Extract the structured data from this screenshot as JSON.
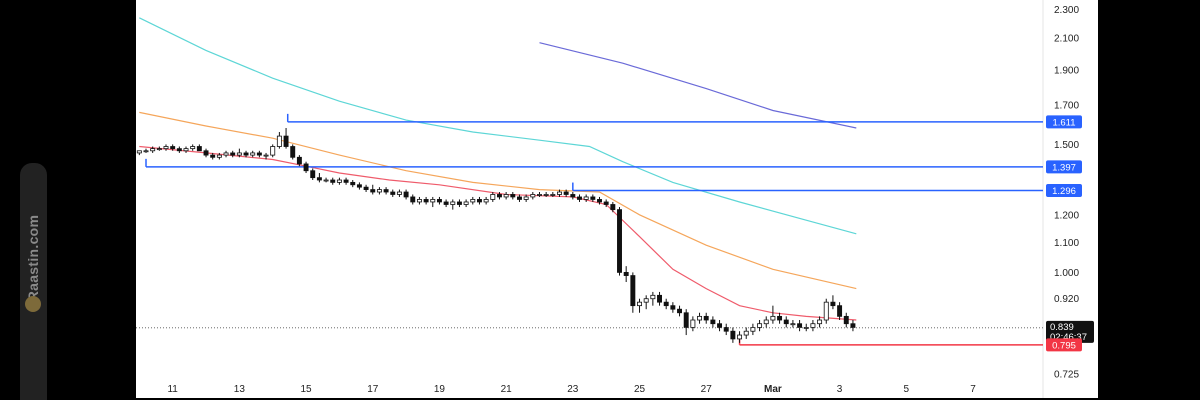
{
  "watermark": {
    "text": "Raastin.com",
    "logo_icon": "raastin-logo-icon"
  },
  "chart_data": {
    "type": "candlestick",
    "y_scale": "log",
    "ylim": [
      0.7,
      2.37
    ],
    "y_ticks": [
      {
        "value": 2.3,
        "label": "2.300"
      },
      {
        "value": 2.1,
        "label": "2.100"
      },
      {
        "value": 1.9,
        "label": "1.900"
      },
      {
        "value": 1.7,
        "label": "1.700"
      },
      {
        "value": 1.5,
        "label": "1.500"
      },
      {
        "value": 1.2,
        "label": "1.200"
      },
      {
        "value": 1.1,
        "label": "1.100"
      },
      {
        "value": 1.0,
        "label": "1.000"
      },
      {
        "value": 0.92,
        "label": "0.920"
      },
      {
        "value": 0.725,
        "label": "0.725"
      }
    ],
    "x_ticks": [
      {
        "day": 11,
        "label": "11"
      },
      {
        "day": 13,
        "label": "13"
      },
      {
        "day": 15,
        "label": "15"
      },
      {
        "day": 17,
        "label": "17"
      },
      {
        "day": 19,
        "label": "19"
      },
      {
        "day": 21,
        "label": "21"
      },
      {
        "day": 23,
        "label": "23"
      },
      {
        "day": 25,
        "label": "25"
      },
      {
        "day": 27,
        "label": "27"
      },
      {
        "day": 29,
        "label": "Mar"
      },
      {
        "day": 31,
        "label": "3"
      },
      {
        "day": 33,
        "label": "5"
      },
      {
        "day": 35,
        "label": "7"
      }
    ],
    "xlim": [
      9.9,
      37.1
    ],
    "candles": [
      [
        10.0,
        1.46,
        1.47,
        1.45,
        1.47
      ],
      [
        10.2,
        1.47,
        1.48,
        1.46,
        1.47
      ],
      [
        10.4,
        1.47,
        1.49,
        1.46,
        1.48
      ],
      [
        10.6,
        1.48,
        1.49,
        1.47,
        1.48
      ],
      [
        10.8,
        1.48,
        1.5,
        1.47,
        1.49
      ],
      [
        11.0,
        1.49,
        1.5,
        1.47,
        1.48
      ],
      [
        11.2,
        1.48,
        1.49,
        1.46,
        1.47
      ],
      [
        11.4,
        1.47,
        1.49,
        1.46,
        1.48
      ],
      [
        11.6,
        1.48,
        1.5,
        1.47,
        1.49
      ],
      [
        11.8,
        1.49,
        1.5,
        1.47,
        1.47
      ],
      [
        12.0,
        1.47,
        1.48,
        1.44,
        1.45
      ],
      [
        12.2,
        1.45,
        1.46,
        1.43,
        1.44
      ],
      [
        12.4,
        1.44,
        1.46,
        1.43,
        1.45
      ],
      [
        12.6,
        1.45,
        1.47,
        1.44,
        1.46
      ],
      [
        12.8,
        1.46,
        1.47,
        1.44,
        1.45
      ],
      [
        13.0,
        1.45,
        1.48,
        1.44,
        1.46
      ],
      [
        13.2,
        1.46,
        1.47,
        1.44,
        1.45
      ],
      [
        13.4,
        1.45,
        1.47,
        1.44,
        1.46
      ],
      [
        13.6,
        1.46,
        1.47,
        1.44,
        1.45
      ],
      [
        13.8,
        1.45,
        1.46,
        1.43,
        1.45
      ],
      [
        14.0,
        1.45,
        1.5,
        1.44,
        1.49
      ],
      [
        14.2,
        1.49,
        1.56,
        1.48,
        1.54
      ],
      [
        14.4,
        1.54,
        1.58,
        1.48,
        1.49
      ],
      [
        14.6,
        1.49,
        1.5,
        1.43,
        1.44
      ],
      [
        14.8,
        1.44,
        1.45,
        1.4,
        1.41
      ],
      [
        15.0,
        1.41,
        1.42,
        1.37,
        1.38
      ],
      [
        15.2,
        1.38,
        1.39,
        1.34,
        1.35
      ],
      [
        15.4,
        1.35,
        1.37,
        1.33,
        1.34
      ],
      [
        15.6,
        1.34,
        1.35,
        1.33,
        1.34
      ],
      [
        15.8,
        1.34,
        1.35,
        1.32,
        1.33
      ],
      [
        16.0,
        1.33,
        1.35,
        1.32,
        1.34
      ],
      [
        16.2,
        1.34,
        1.35,
        1.32,
        1.33
      ],
      [
        16.4,
        1.33,
        1.34,
        1.31,
        1.32
      ],
      [
        16.6,
        1.32,
        1.33,
        1.3,
        1.31
      ],
      [
        16.8,
        1.31,
        1.32,
        1.29,
        1.3
      ],
      [
        17.0,
        1.3,
        1.32,
        1.28,
        1.29
      ],
      [
        17.2,
        1.29,
        1.31,
        1.28,
        1.3
      ],
      [
        17.4,
        1.3,
        1.31,
        1.28,
        1.29
      ],
      [
        17.6,
        1.29,
        1.3,
        1.27,
        1.28
      ],
      [
        17.8,
        1.28,
        1.3,
        1.27,
        1.29
      ],
      [
        18.0,
        1.29,
        1.3,
        1.26,
        1.27
      ],
      [
        18.2,
        1.27,
        1.28,
        1.24,
        1.25
      ],
      [
        18.4,
        1.25,
        1.27,
        1.24,
        1.26
      ],
      [
        18.6,
        1.26,
        1.27,
        1.24,
        1.25
      ],
      [
        18.8,
        1.25,
        1.27,
        1.23,
        1.26
      ],
      [
        19.0,
        1.26,
        1.27,
        1.24,
        1.25
      ],
      [
        19.2,
        1.25,
        1.26,
        1.23,
        1.24
      ],
      [
        19.4,
        1.24,
        1.26,
        1.22,
        1.25
      ],
      [
        19.6,
        1.25,
        1.26,
        1.23,
        1.24
      ],
      [
        19.8,
        1.24,
        1.26,
        1.23,
        1.25
      ],
      [
        20.0,
        1.25,
        1.27,
        1.24,
        1.26
      ],
      [
        20.2,
        1.26,
        1.27,
        1.24,
        1.25
      ],
      [
        20.4,
        1.25,
        1.27,
        1.24,
        1.26
      ],
      [
        20.6,
        1.26,
        1.29,
        1.25,
        1.28
      ],
      [
        20.8,
        1.28,
        1.29,
        1.26,
        1.27
      ],
      [
        21.0,
        1.27,
        1.29,
        1.26,
        1.28
      ],
      [
        21.2,
        1.28,
        1.29,
        1.26,
        1.27
      ],
      [
        21.4,
        1.27,
        1.28,
        1.25,
        1.26
      ],
      [
        21.6,
        1.26,
        1.28,
        1.25,
        1.27
      ],
      [
        21.8,
        1.27,
        1.29,
        1.26,
        1.28
      ],
      [
        22.0,
        1.28,
        1.29,
        1.27,
        1.28
      ],
      [
        22.2,
        1.28,
        1.29,
        1.27,
        1.28
      ],
      [
        22.4,
        1.28,
        1.29,
        1.27,
        1.28
      ],
      [
        22.6,
        1.28,
        1.3,
        1.27,
        1.29
      ],
      [
        22.8,
        1.29,
        1.3,
        1.27,
        1.28
      ],
      [
        23.0,
        1.28,
        1.29,
        1.26,
        1.27
      ],
      [
        23.2,
        1.27,
        1.28,
        1.25,
        1.26
      ],
      [
        23.4,
        1.26,
        1.28,
        1.25,
        1.27
      ],
      [
        23.6,
        1.27,
        1.28,
        1.25,
        1.26
      ],
      [
        23.8,
        1.26,
        1.27,
        1.24,
        1.25
      ],
      [
        24.0,
        1.25,
        1.26,
        1.23,
        1.24
      ],
      [
        24.2,
        1.24,
        1.25,
        1.21,
        1.22
      ],
      [
        24.4,
        1.22,
        1.23,
        0.99,
        1.0
      ],
      [
        24.6,
        1.0,
        1.02,
        0.97,
        0.99
      ],
      [
        24.8,
        0.99,
        1.0,
        0.88,
        0.9
      ],
      [
        25.0,
        0.9,
        0.92,
        0.88,
        0.91
      ],
      [
        25.2,
        0.91,
        0.93,
        0.89,
        0.92
      ],
      [
        25.4,
        0.92,
        0.94,
        0.9,
        0.93
      ],
      [
        25.6,
        0.93,
        0.94,
        0.9,
        0.91
      ],
      [
        25.8,
        0.91,
        0.92,
        0.89,
        0.9
      ],
      [
        26.0,
        0.9,
        0.91,
        0.88,
        0.89
      ],
      [
        26.2,
        0.89,
        0.9,
        0.87,
        0.88
      ],
      [
        26.4,
        0.88,
        0.89,
        0.82,
        0.84
      ],
      [
        26.6,
        0.84,
        0.87,
        0.83,
        0.86
      ],
      [
        26.8,
        0.86,
        0.88,
        0.85,
        0.87
      ],
      [
        27.0,
        0.87,
        0.88,
        0.85,
        0.86
      ],
      [
        27.2,
        0.86,
        0.87,
        0.84,
        0.85
      ],
      [
        27.4,
        0.85,
        0.86,
        0.83,
        0.84
      ],
      [
        27.6,
        0.84,
        0.85,
        0.82,
        0.83
      ],
      [
        27.8,
        0.83,
        0.84,
        0.8,
        0.81
      ],
      [
        28.0,
        0.81,
        0.83,
        0.8,
        0.82
      ],
      [
        28.2,
        0.82,
        0.84,
        0.81,
        0.83
      ],
      [
        28.4,
        0.83,
        0.85,
        0.82,
        0.84
      ],
      [
        28.6,
        0.84,
        0.86,
        0.83,
        0.85
      ],
      [
        28.8,
        0.85,
        0.87,
        0.84,
        0.86
      ],
      [
        29.0,
        0.86,
        0.9,
        0.85,
        0.87
      ],
      [
        29.2,
        0.87,
        0.88,
        0.85,
        0.86
      ],
      [
        29.4,
        0.86,
        0.87,
        0.84,
        0.85
      ],
      [
        29.6,
        0.85,
        0.86,
        0.84,
        0.85
      ],
      [
        29.8,
        0.85,
        0.86,
        0.83,
        0.84
      ],
      [
        30.0,
        0.84,
        0.85,
        0.83,
        0.84
      ],
      [
        30.2,
        0.84,
        0.86,
        0.83,
        0.85
      ],
      [
        30.4,
        0.85,
        0.87,
        0.84,
        0.86
      ],
      [
        30.6,
        0.86,
        0.92,
        0.85,
        0.91
      ],
      [
        30.8,
        0.91,
        0.93,
        0.89,
        0.9
      ],
      [
        31.0,
        0.9,
        0.91,
        0.86,
        0.87
      ],
      [
        31.2,
        0.87,
        0.88,
        0.84,
        0.85
      ],
      [
        31.4,
        0.85,
        0.86,
        0.83,
        0.84
      ]
    ],
    "indicator_lines": [
      {
        "name": "",
        "color": "#5dd6d6",
        "points": [
          [
            10,
            2.24
          ],
          [
            12,
            2.02
          ],
          [
            14,
            1.85
          ],
          [
            16,
            1.72
          ],
          [
            18,
            1.62
          ],
          [
            20,
            1.56
          ],
          [
            22,
            1.52
          ],
          [
            23.5,
            1.49
          ],
          [
            24.5,
            1.42
          ],
          [
            26,
            1.33
          ],
          [
            28,
            1.25
          ],
          [
            30,
            1.18
          ],
          [
            31.5,
            1.13
          ]
        ]
      },
      {
        "name": "",
        "color": "#f5a65b",
        "points": [
          [
            10,
            1.66
          ],
          [
            12,
            1.59
          ],
          [
            14,
            1.53
          ],
          [
            16,
            1.45
          ],
          [
            18,
            1.38
          ],
          [
            20,
            1.33
          ],
          [
            22,
            1.3
          ],
          [
            23.8,
            1.29
          ],
          [
            25,
            1.2
          ],
          [
            27,
            1.09
          ],
          [
            29,
            1.01
          ],
          [
            31.5,
            0.95
          ]
        ]
      },
      {
        "name": "",
        "color": "#ef5b6b",
        "points": [
          [
            10,
            1.49
          ],
          [
            12,
            1.46
          ],
          [
            14,
            1.43
          ],
          [
            15,
            1.4
          ],
          [
            16,
            1.37
          ],
          [
            17.5,
            1.34
          ],
          [
            19,
            1.32
          ],
          [
            21,
            1.28
          ],
          [
            23,
            1.27
          ],
          [
            24,
            1.24
          ],
          [
            25,
            1.12
          ],
          [
            26,
            1.01
          ],
          [
            27,
            0.95
          ],
          [
            28,
            0.9
          ],
          [
            29,
            0.88
          ],
          [
            30,
            0.87
          ],
          [
            31.5,
            0.86
          ]
        ]
      },
      {
        "name": "",
        "color": "#6a6ad8",
        "points": [
          [
            22,
            2.07
          ],
          [
            24.5,
            1.94
          ],
          [
            27,
            1.79
          ],
          [
            29,
            1.67
          ],
          [
            31.5,
            1.58
          ]
        ]
      }
    ],
    "levels": [
      {
        "value": 1.611,
        "label": "1.611",
        "color": "#2962ff",
        "start_day": 14.45
      },
      {
        "value": 1.397,
        "label": "1.397",
        "color": "#2962ff",
        "start_day": 10.2
      },
      {
        "value": 1.296,
        "label": "1.296",
        "color": "#2962ff",
        "start_day": 23.0
      },
      {
        "value": 0.795,
        "label": "0.795",
        "color": "#f23645",
        "start_day": 28.0
      }
    ],
    "current_price": {
      "value": 0.839,
      "label": "0.839",
      "countdown": "02:46:37"
    }
  }
}
